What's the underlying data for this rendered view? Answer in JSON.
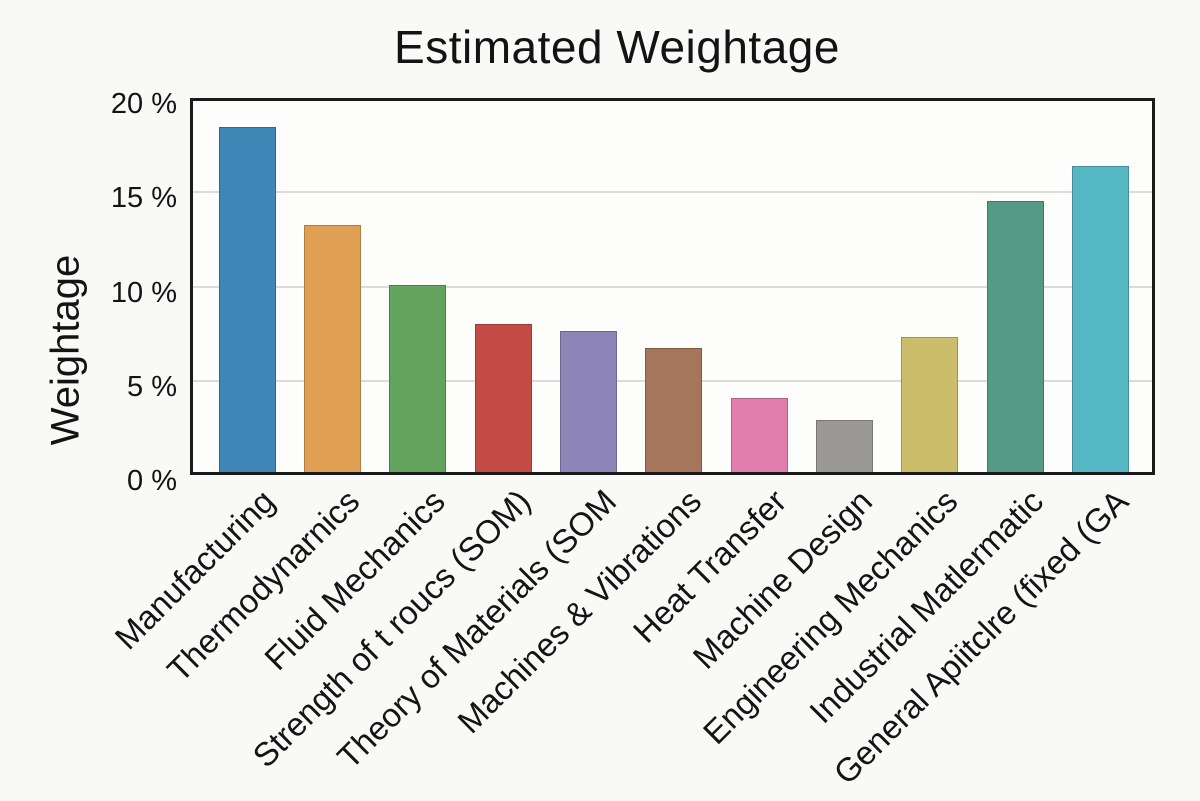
{
  "chart_data": {
    "type": "bar",
    "title": "Estimated Weightage",
    "xlabel": "",
    "ylabel": "Weightage",
    "ylim": [
      0,
      20
    ],
    "yticks": [
      0,
      5,
      10,
      15,
      20
    ],
    "ytick_labels": [
      "0 %",
      "5 %",
      "10 %",
      "15 %",
      "20 %"
    ],
    "grid": "horizontal-only",
    "legend": false,
    "categories": [
      "Manufacturing",
      "Thermodynarnics",
      "Fluid Mechanics",
      "Strength of t roucs (SOM)",
      "Theory of Materials (SOM",
      "Machines & Vibrations",
      "Heat Transfer",
      "Machine Design",
      "Engineering Mechanics",
      "Industrial Matlermatic",
      "General Apiitclre (fixed (GA"
    ],
    "values": [
      18.6,
      13.3,
      10.1,
      8.0,
      7.6,
      6.7,
      4.0,
      2.8,
      7.3,
      14.6,
      16.5
    ],
    "bar_colors": [
      "#3e86b5",
      "#dfa054",
      "#62a35e",
      "#c44b45",
      "#8d85b8",
      "#a5765c",
      "#e07fae",
      "#9b9997",
      "#ccbd6b",
      "#549a84",
      "#56b7c4"
    ]
  },
  "style": {
    "page_background": "#f9f9f7",
    "plot_background": "#fdfdfc",
    "spine_color": "#1b1b1b",
    "grid_color": "#dbdbd9",
    "text_color": "#141414"
  }
}
